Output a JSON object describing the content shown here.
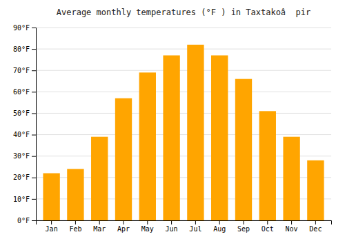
{
  "chart_data": {
    "type": "bar",
    "title": "Average monthly temperatures (°F ) in Taxtakoâ  pir",
    "categories": [
      "Jan",
      "Feb",
      "Mar",
      "Apr",
      "May",
      "Jun",
      "Jul",
      "Aug",
      "Sep",
      "Oct",
      "Nov",
      "Dec"
    ],
    "values": [
      22,
      24,
      39,
      57,
      69,
      77,
      82,
      77,
      66,
      51,
      39,
      28
    ],
    "color": "#FFA500",
    "ylim": [
      0,
      90
    ],
    "yticks": [
      {
        "value": 0,
        "label": "0°F"
      },
      {
        "value": 10,
        "label": "10°F"
      },
      {
        "value": 20,
        "label": "20°F"
      },
      {
        "value": 30,
        "label": "30°F"
      },
      {
        "value": 40,
        "label": "40°F"
      },
      {
        "value": 50,
        "label": "50°F"
      },
      {
        "value": 60,
        "label": "60°F"
      },
      {
        "value": 70,
        "label": "70°F"
      },
      {
        "value": 80,
        "label": "80°F"
      },
      {
        "value": 90,
        "label": "90°F"
      }
    ],
    "grid": true
  }
}
